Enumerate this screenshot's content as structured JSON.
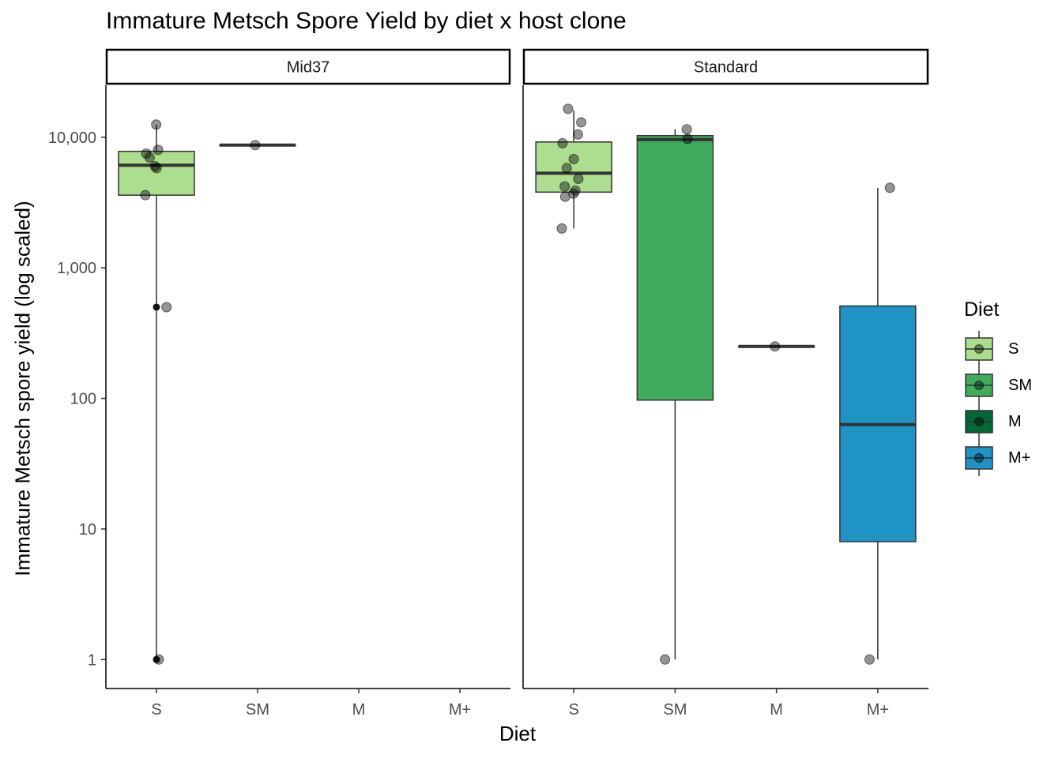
{
  "chart_data": {
    "type": "boxplot",
    "title": "Immature Metsch Spore Yield by diet x host clone",
    "xlabel": "Diet",
    "ylabel": "Immature Metsch spore yield (log scaled)",
    "y_scale": "log10",
    "ylim": [
      0.6,
      25000
    ],
    "y_ticks": [
      {
        "value": 1,
        "label": "1"
      },
      {
        "value": 10,
        "label": "10"
      },
      {
        "value": 100,
        "label": "100"
      },
      {
        "value": 1000,
        "label": "1,000"
      },
      {
        "value": 10000,
        "label": "10,000"
      }
    ],
    "categories": [
      "S",
      "SM",
      "M",
      "M+"
    ],
    "colors": {
      "S": "#addd8e",
      "SM": "#41ab5d",
      "M": "#006837",
      "M+": "#1f93c4"
    },
    "legend": {
      "title": "Diet",
      "position": "right",
      "entries": [
        "S",
        "SM",
        "M",
        "M+"
      ]
    },
    "panels": [
      {
        "name": "Mid37",
        "boxes": [
          {
            "diet": "S",
            "lower": 1,
            "q1": 3600,
            "median": 6100,
            "q3": 7800,
            "upper": 12500,
            "outliers": [
              1,
              500
            ],
            "points": [
              12500,
              8000,
              7500,
              7000,
              6000,
              5800,
              3600,
              500,
              1
            ]
          },
          {
            "diet": "SM",
            "lower": 8700,
            "q1": 8700,
            "median": 8700,
            "q3": 8700,
            "upper": 8700,
            "outliers": [],
            "points": [
              8700
            ]
          }
        ]
      },
      {
        "name": "Standard",
        "boxes": [
          {
            "diet": "S",
            "lower": 2000,
            "q1": 3800,
            "median": 5300,
            "q3": 9200,
            "upper": 16000,
            "outliers": [],
            "points": [
              16500,
              13000,
              10500,
              9000,
              6800,
              5800,
              4800,
              4200,
              3900,
              3700,
              3500,
              2000
            ]
          },
          {
            "diet": "SM",
            "lower": 1,
            "q1": 97,
            "median": 9600,
            "q3": 10300,
            "upper": 11500,
            "outliers": [],
            "points": [
              11500,
              9700,
              1
            ]
          },
          {
            "diet": "M",
            "lower": 250,
            "q1": 250,
            "median": 250,
            "q3": 250,
            "upper": 250,
            "outliers": [],
            "points": [
              250
            ]
          },
          {
            "diet": "M+",
            "lower": 1,
            "q1": 8,
            "median": 63,
            "q3": 510,
            "upper": 4100,
            "outliers": [],
            "points": [
              4100,
              1
            ]
          }
        ]
      }
    ]
  }
}
